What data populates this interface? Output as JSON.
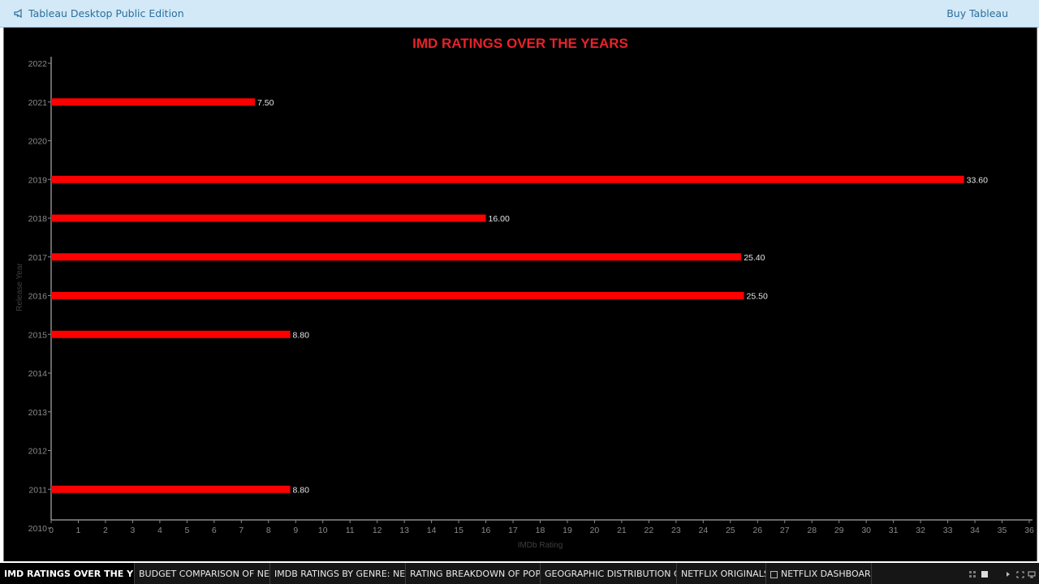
{
  "header": {
    "app_title": "Tableau Desktop Public Edition",
    "buy_label": "Buy Tableau",
    "brand_icon": "megaphone-icon"
  },
  "colors": {
    "bar": "#ff0000",
    "title": "#e8232a",
    "background": "#000000",
    "axis_text": "#8a8a8a"
  },
  "chart_data": {
    "type": "bar",
    "orientation": "horizontal",
    "title": "IMD RATINGS OVER THE YEARS",
    "xlabel": "IMDb Rating",
    "ylabel": "Release Year",
    "xlim": [
      0,
      36
    ],
    "x_ticks": [
      0,
      1,
      2,
      3,
      4,
      5,
      6,
      7,
      8,
      9,
      10,
      11,
      12,
      13,
      14,
      15,
      16,
      17,
      18,
      19,
      20,
      21,
      22,
      23,
      24,
      25,
      26,
      27,
      28,
      29,
      30,
      31,
      32,
      33,
      34,
      35,
      36
    ],
    "categories": [
      "2022",
      "2021",
      "2020",
      "2019",
      "2018",
      "2017",
      "2016",
      "2015",
      "2014",
      "2013",
      "2012",
      "2011",
      "2010"
    ],
    "values": [
      null,
      7.5,
      null,
      33.6,
      16.0,
      25.4,
      25.5,
      8.8,
      null,
      null,
      null,
      8.8,
      null
    ],
    "data_labels": [
      null,
      "7.50",
      null,
      "33.60",
      "16.00",
      "25.40",
      "25.50",
      "8.80",
      null,
      null,
      null,
      "8.80",
      null
    ],
    "grid": false,
    "legend": "none"
  },
  "tabs": [
    {
      "label": "IMD RATINGS OVER THE YEARS",
      "active": true
    },
    {
      "label": "BUDGET COMPARISON OF NET...",
      "active": false
    },
    {
      "label": "IMDB RATINGS BY GENRE: NETF...",
      "active": false
    },
    {
      "label": "RATING BREAKDOWN OF POPU...",
      "active": false
    },
    {
      "label": "GEOGRAPHIC DISTRIBUTION O...",
      "active": false
    },
    {
      "label": "NETFLIX ORIGINALS",
      "active": false
    },
    {
      "label": "NETFLIX DASHBOARD",
      "active": false
    }
  ],
  "controls": {
    "icons": [
      "grid-view-icon",
      "single-view-icon",
      "play-icon",
      "fullscreen-icon",
      "present-icon"
    ]
  }
}
